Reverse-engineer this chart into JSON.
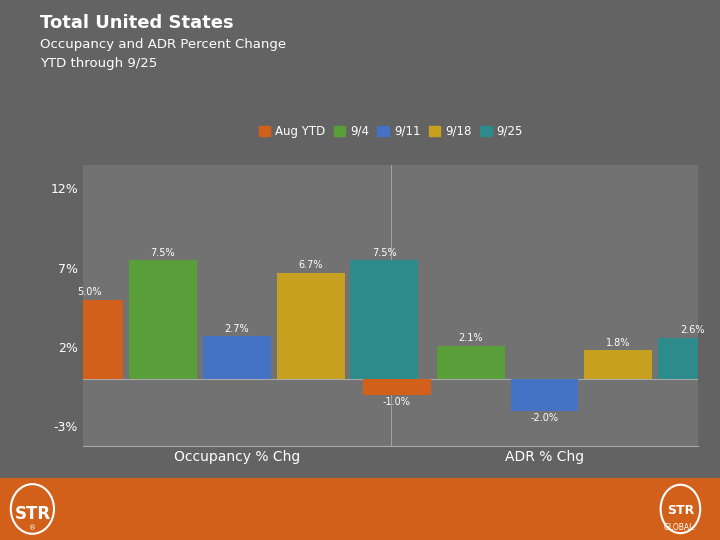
{
  "title_line1": "Total United States",
  "title_line2": "Occupancy and ADR Percent Change",
  "title_line3": "YTD through 9/25",
  "categories": [
    "Occupancy % Chg",
    "ADR % Chg"
  ],
  "series_labels": [
    "Aug YTD",
    "9/4",
    "9/11",
    "9/18",
    "9/25"
  ],
  "series_colors": [
    "#d2601a",
    "#5a9e3a",
    "#4472c4",
    "#c8a020",
    "#2e8b8b"
  ],
  "values": {
    "Aug YTD": [
      5.0,
      -1.0
    ],
    "9/4": [
      7.5,
      2.1
    ],
    "9/11": [
      2.7,
      -2.0
    ],
    "9/18": [
      6.7,
      1.8
    ],
    "9/25": [
      7.5,
      2.6
    ]
  },
  "ylim": [
    -4.2,
    13.5
  ],
  "yticks": [
    -3,
    2,
    7,
    12
  ],
  "ytick_labels": [
    "-3%",
    "2%",
    "7%",
    "12%"
  ],
  "background_color": "#636363",
  "plot_bg_color": "#727272",
  "text_color": "#ffffff",
  "footer_color": "#d2601a",
  "bar_width": 0.12,
  "label_fontsize": 7,
  "axis_label_fontsize": 10,
  "ytick_fontsize": 9
}
